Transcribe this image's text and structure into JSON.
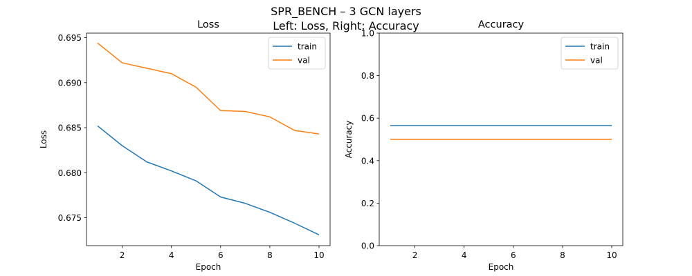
{
  "figure": {
    "suptitle_line1": "SPR_BENCH – 3 GCN layers",
    "suptitle_line2": "Left: Loss, Right: Accuracy"
  },
  "colors": {
    "train": "#1f77b4",
    "val": "#ff7f0e",
    "axis": "#000000",
    "legend_border": "#cccccc"
  },
  "chart_data": [
    {
      "type": "line",
      "title": "Loss",
      "xlabel": "Epoch",
      "ylabel": "Loss",
      "xlim": [
        0.55,
        10.45
      ],
      "ylim": [
        0.6719,
        0.6955
      ],
      "xticks": [
        2,
        4,
        6,
        8,
        10
      ],
      "yticks": [
        0.675,
        0.68,
        0.685,
        0.69,
        0.695
      ],
      "ytick_labels": [
        "0.675",
        "0.680",
        "0.685",
        "0.690",
        "0.695"
      ],
      "grid": false,
      "legend_position": "upper right",
      "x": [
        1,
        2,
        3,
        4,
        5,
        6,
        7,
        8,
        9,
        10
      ],
      "series": [
        {
          "name": "train",
          "values": [
            0.6852,
            0.683,
            0.6812,
            0.6802,
            0.6791,
            0.6773,
            0.6766,
            0.6756,
            0.6744,
            0.6731
          ]
        },
        {
          "name": "val",
          "values": [
            0.6944,
            0.6922,
            0.6916,
            0.691,
            0.6895,
            0.6869,
            0.6868,
            0.6862,
            0.6847,
            0.6843
          ]
        }
      ]
    },
    {
      "type": "line",
      "title": "Accuracy",
      "xlabel": "Epoch",
      "ylabel": "Accuracy",
      "xlim": [
        0.55,
        10.45
      ],
      "ylim": [
        0.0,
        1.0
      ],
      "xticks": [
        2,
        4,
        6,
        8,
        10
      ],
      "yticks": [
        0.0,
        0.2,
        0.4,
        0.6,
        0.8,
        1.0
      ],
      "ytick_labels": [
        "0.0",
        "0.2",
        "0.4",
        "0.6",
        "0.8",
        "1.0"
      ],
      "grid": false,
      "legend_position": "upper right",
      "x": [
        1,
        2,
        3,
        4,
        5,
        6,
        7,
        8,
        9,
        10
      ],
      "series": [
        {
          "name": "train",
          "values": [
            0.565,
            0.565,
            0.565,
            0.565,
            0.565,
            0.565,
            0.565,
            0.565,
            0.565,
            0.565
          ]
        },
        {
          "name": "val",
          "values": [
            0.5,
            0.5,
            0.5,
            0.5,
            0.5,
            0.5,
            0.5,
            0.5,
            0.5,
            0.5
          ]
        }
      ]
    }
  ]
}
